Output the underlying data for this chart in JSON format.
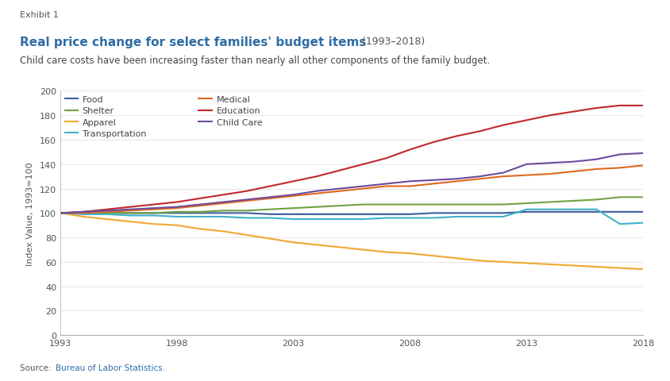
{
  "title_main": "Real price change for select families' budget items",
  "title_years": " (1993–2018)",
  "subtitle": "Child care costs have been increasing faster than nearly all other components of the family budget.",
  "exhibit_label": "Exhibit 1",
  "source_text": "Source: Bureau of Labor Statistics.",
  "ylabel": "Index Value, 1993=100",
  "ylim": [
    0,
    200
  ],
  "yticks": [
    0,
    20,
    40,
    60,
    80,
    100,
    120,
    140,
    160,
    180,
    200
  ],
  "xticks": [
    1993,
    1998,
    2003,
    2008,
    2013,
    2018
  ],
  "xlim": [
    1993,
    2018
  ],
  "background_color": "#ffffff",
  "series": {
    "Food": {
      "color": "#3f5fa0",
      "years": [
        1993,
        1994,
        1995,
        1996,
        1997,
        1998,
        1999,
        2000,
        2001,
        2002,
        2003,
        2004,
        2005,
        2006,
        2007,
        2008,
        2009,
        2010,
        2011,
        2012,
        2013,
        2014,
        2015,
        2016,
        2017,
        2018
      ],
      "values": [
        100,
        100,
        100,
        100,
        100,
        100,
        100,
        100,
        100,
        99,
        99,
        99,
        99,
        99,
        99,
        99,
        100,
        100,
        100,
        100,
        101,
        101,
        101,
        101,
        101,
        101
      ]
    },
    "Shelter": {
      "color": "#70a140",
      "years": [
        1993,
        1994,
        1995,
        1996,
        1997,
        1998,
        1999,
        2000,
        2001,
        2002,
        2003,
        2004,
        2005,
        2006,
        2007,
        2008,
        2009,
        2010,
        2011,
        2012,
        2013,
        2014,
        2015,
        2016,
        2017,
        2018
      ],
      "values": [
        100,
        100,
        100,
        100,
        100,
        101,
        101,
        102,
        102,
        103,
        104,
        105,
        106,
        107,
        107,
        107,
        107,
        107,
        107,
        107,
        108,
        109,
        110,
        111,
        113,
        113
      ]
    },
    "Apparel": {
      "color": "#f0a830",
      "years": [
        1993,
        1994,
        1995,
        1996,
        1997,
        1998,
        1999,
        2000,
        2001,
        2002,
        2003,
        2004,
        2005,
        2006,
        2007,
        2008,
        2009,
        2010,
        2011,
        2012,
        2013,
        2014,
        2015,
        2016,
        2017,
        2018
      ],
      "values": [
        100,
        97,
        95,
        93,
        91,
        90,
        87,
        85,
        82,
        79,
        76,
        74,
        72,
        70,
        68,
        67,
        65,
        63,
        61,
        60,
        59,
        58,
        57,
        56,
        55,
        54
      ]
    },
    "Transportation": {
      "color": "#40b0c8",
      "years": [
        1993,
        1994,
        1995,
        1996,
        1997,
        1998,
        1999,
        2000,
        2001,
        2002,
        2003,
        2004,
        2005,
        2006,
        2007,
        2008,
        2009,
        2010,
        2011,
        2012,
        2013,
        2014,
        2015,
        2016,
        2017,
        2018
      ],
      "values": [
        100,
        99,
        99,
        98,
        98,
        97,
        97,
        97,
        96,
        96,
        95,
        95,
        95,
        95,
        96,
        96,
        96,
        97,
        97,
        97,
        103,
        103,
        103,
        103,
        91,
        92
      ]
    },
    "Medical": {
      "color": "#e06820",
      "years": [
        1993,
        1994,
        1995,
        1996,
        1997,
        1998,
        1999,
        2000,
        2001,
        2002,
        2003,
        2004,
        2005,
        2006,
        2007,
        2008,
        2009,
        2010,
        2011,
        2012,
        2013,
        2014,
        2015,
        2016,
        2017,
        2018
      ],
      "values": [
        100,
        100,
        101,
        102,
        103,
        104,
        106,
        108,
        110,
        112,
        114,
        116,
        118,
        120,
        122,
        122,
        124,
        126,
        128,
        130,
        131,
        132,
        134,
        136,
        137,
        139
      ]
    },
    "Education": {
      "color": "#c0282c",
      "years": [
        1993,
        1994,
        1995,
        1996,
        1997,
        1998,
        1999,
        2000,
        2001,
        2002,
        2003,
        2004,
        2005,
        2006,
        2007,
        2008,
        2009,
        2010,
        2011,
        2012,
        2013,
        2014,
        2015,
        2016,
        2017,
        2018
      ],
      "values": [
        100,
        101,
        103,
        105,
        107,
        109,
        112,
        115,
        118,
        122,
        126,
        130,
        135,
        140,
        145,
        152,
        158,
        163,
        167,
        172,
        176,
        180,
        183,
        186,
        188,
        188
      ]
    },
    "Child Care": {
      "color": "#6b4c9a",
      "years": [
        1993,
        1994,
        1995,
        1996,
        1997,
        1998,
        1999,
        2000,
        2001,
        2002,
        2003,
        2004,
        2005,
        2006,
        2007,
        2008,
        2009,
        2010,
        2011,
        2012,
        2013,
        2014,
        2015,
        2016,
        2017,
        2018
      ],
      "values": [
        100,
        101,
        102,
        103,
        104,
        105,
        107,
        109,
        111,
        113,
        115,
        118,
        120,
        122,
        124,
        126,
        127,
        128,
        130,
        133,
        140,
        141,
        142,
        144,
        148,
        149
      ]
    }
  },
  "legend_col1": [
    "Food",
    "Shelter",
    "Apparel",
    "Transportation"
  ],
  "legend_col2": [
    "Medical",
    "Education",
    "Child Care"
  ]
}
